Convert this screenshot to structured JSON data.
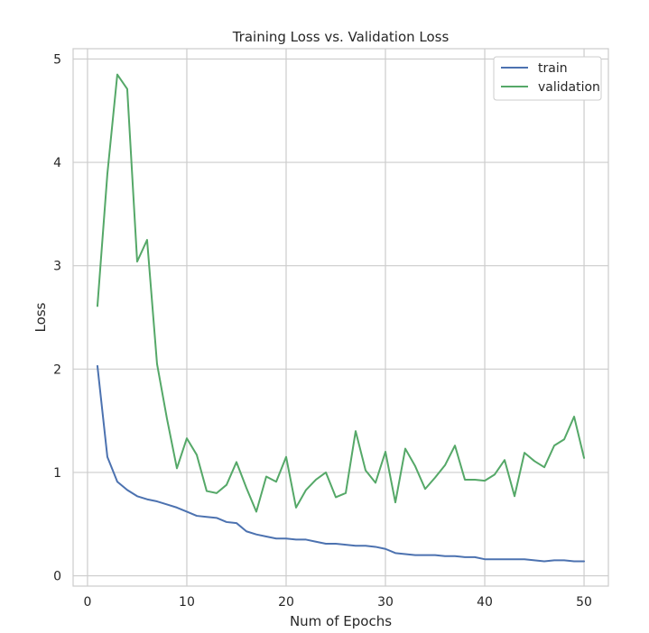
{
  "chart_data": {
    "type": "line",
    "title": "Training Loss vs. Validation Loss",
    "xlabel": "Num of Epochs",
    "ylabel": "Loss",
    "xlim": [
      -1.45,
      52.45
    ],
    "ylim": [
      -0.1,
      5.1
    ],
    "xticks": [
      0,
      10,
      20,
      30,
      40,
      50
    ],
    "yticks": [
      0,
      1,
      2,
      3,
      4,
      5
    ],
    "grid": true,
    "legend_position": "top-right",
    "x": [
      1,
      2,
      3,
      4,
      5,
      6,
      7,
      8,
      9,
      10,
      11,
      12,
      13,
      14,
      15,
      16,
      17,
      18,
      19,
      20,
      21,
      22,
      23,
      24,
      25,
      26,
      27,
      28,
      29,
      30,
      31,
      32,
      33,
      34,
      35,
      36,
      37,
      38,
      39,
      40,
      41,
      42,
      43,
      44,
      45,
      46,
      47,
      48,
      49,
      50
    ],
    "series": [
      {
        "name": "train",
        "color": "#4c72b0",
        "values": [
          2.03,
          1.15,
          0.91,
          0.83,
          0.77,
          0.74,
          0.72,
          0.69,
          0.66,
          0.62,
          0.58,
          0.57,
          0.56,
          0.52,
          0.51,
          0.43,
          0.4,
          0.38,
          0.36,
          0.36,
          0.35,
          0.35,
          0.33,
          0.31,
          0.31,
          0.3,
          0.29,
          0.29,
          0.28,
          0.26,
          0.22,
          0.21,
          0.2,
          0.2,
          0.2,
          0.19,
          0.19,
          0.18,
          0.18,
          0.16,
          0.16,
          0.16,
          0.16,
          0.16,
          0.15,
          0.14,
          0.15,
          0.15,
          0.14,
          0.14
        ]
      },
      {
        "name": "validation",
        "color": "#55a868",
        "values": [
          2.61,
          3.89,
          4.85,
          4.71,
          3.04,
          3.25,
          2.05,
          1.52,
          1.04,
          1.33,
          1.17,
          0.82,
          0.8,
          0.88,
          1.1,
          0.85,
          0.62,
          0.96,
          0.91,
          1.15,
          0.66,
          0.83,
          0.93,
          1.0,
          0.76,
          0.8,
          1.4,
          1.02,
          0.9,
          1.2,
          0.71,
          1.23,
          1.06,
          0.84,
          0.95,
          1.07,
          1.26,
          0.93,
          0.93,
          0.92,
          0.98,
          1.12,
          0.77,
          1.19,
          1.11,
          1.05,
          1.26,
          1.32,
          1.54,
          1.14
        ]
      }
    ]
  }
}
